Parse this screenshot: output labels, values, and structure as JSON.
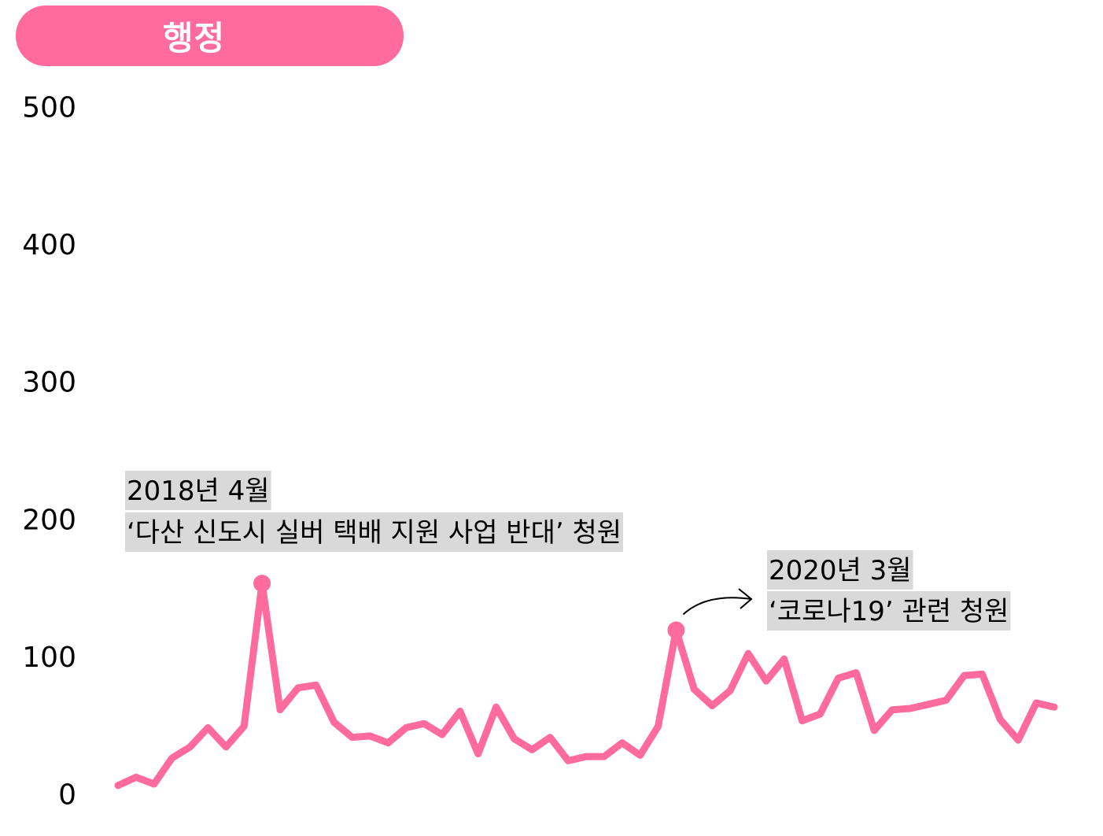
{
  "chart_data": {
    "type": "line",
    "title": "행정",
    "xlabel": "",
    "ylabel": "",
    "ylim": [
      0,
      500
    ],
    "yticks": [
      "500",
      "400",
      "300",
      "200",
      "100",
      "0"
    ],
    "grid": false,
    "legend": "none",
    "colors": {
      "line": "#ff6b9d",
      "title_bg": "#ff6b9d",
      "title_text": "#ffffff",
      "annotation_bg": "#d9d9d9",
      "text": "#000000"
    },
    "series": [
      {
        "values": [
          7,
          13,
          8,
          27,
          35,
          49,
          35,
          50,
          154,
          62,
          78,
          80,
          53,
          42,
          43,
          38,
          49,
          52,
          44,
          61,
          30,
          64,
          41,
          33,
          42,
          25,
          28,
          28,
          38,
          29,
          50,
          120,
          77,
          65,
          76,
          103,
          83,
          99,
          54,
          59,
          85,
          89,
          47,
          62,
          63,
          66,
          69,
          87,
          88,
          55,
          40,
          67,
          64
        ]
      }
    ],
    "annotations": [
      {
        "line1": "2018년 4월",
        "line2": "‘다산 신도시 실버 택배 지원 사업 반대’ 청원",
        "point_index": 8,
        "value": 154
      },
      {
        "line1": "2020년 3월",
        "line2": "‘코로나19’ 관련 청원",
        "point_index": 31,
        "value": 120
      }
    ]
  }
}
